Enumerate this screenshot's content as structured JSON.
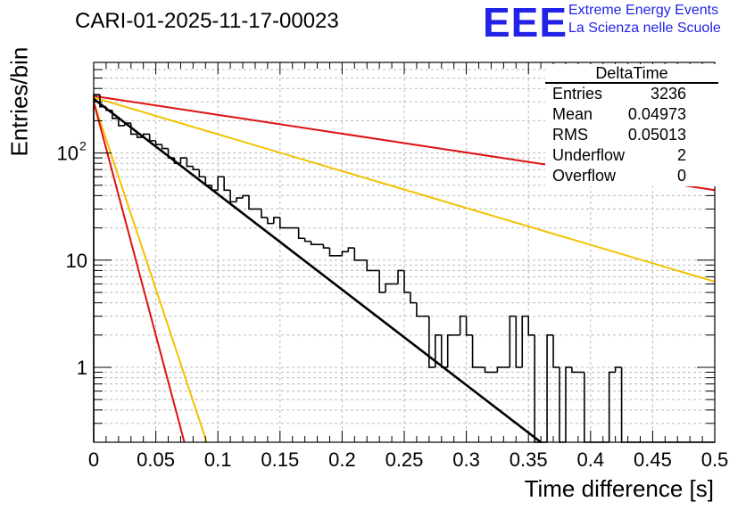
{
  "title": "CARI-01-2025-11-17-00023",
  "logo": {
    "mark": "EEE",
    "line1": "Extreme Energy Events",
    "line2": "La Scienza nelle Scuole",
    "color": "#2323e8"
  },
  "stats_box": {
    "name": "DeltaTime",
    "rows": [
      {
        "label": "Entries",
        "value": "3236"
      },
      {
        "label": "Mean",
        "value": "0.04973"
      },
      {
        "label": "RMS",
        "value": "0.05013"
      },
      {
        "label": "Underflow",
        "value": "2"
      },
      {
        "label": "Overflow",
        "value": "0"
      }
    ]
  },
  "chart_data": {
    "type": "histogram",
    "title": "CARI-01-2025-11-17-00023",
    "xlabel": "Time difference [s]",
    "ylabel": "Entries/bin",
    "xlim": [
      0,
      0.5
    ],
    "ylim": [
      0.2,
      700
    ],
    "yscale": "log",
    "grid": true,
    "x_ticks": [
      "0",
      "0.05",
      "0.1",
      "0.15",
      "0.2",
      "0.25",
      "0.3",
      "0.35",
      "0.4",
      "0.45",
      "0.5"
    ],
    "y_ticks": [
      {
        "value": 1,
        "label": "1"
      },
      {
        "value": 10,
        "label": "10"
      },
      {
        "value": 100,
        "label": "10",
        "exp": "2"
      }
    ],
    "bin_width": 0.005,
    "bin_values": [
      350,
      270,
      250,
      210,
      180,
      190,
      150,
      140,
      150,
      130,
      120,
      110,
      90,
      80,
      90,
      75,
      70,
      60,
      50,
      45,
      60,
      45,
      35,
      38,
      40,
      30,
      30,
      25,
      22,
      25,
      20,
      20,
      20,
      16,
      15,
      14,
      14,
      13,
      11,
      11,
      12,
      13,
      10,
      10,
      8,
      8,
      5,
      6,
      6,
      8,
      5,
      4,
      3,
      3,
      1,
      2,
      1,
      2,
      2,
      3,
      2,
      1,
      1,
      0.9,
      0.9,
      1,
      1,
      3,
      1,
      3,
      2,
      0,
      0,
      2,
      1,
      0,
      1,
      0.9,
      0.9,
      0,
      0,
      0,
      0,
      0.9,
      1,
      0,
      0,
      0,
      0,
      0,
      0,
      0,
      0,
      0,
      0,
      0,
      0,
      0,
      0,
      0
    ],
    "series": [
      {
        "name": "fit",
        "color": "#000000",
        "x": [
          0.0,
          0.36
        ],
        "y": [
          320,
          0.2
        ]
      },
      {
        "name": "red-slow",
        "color": "#dd1111",
        "x": [
          0.0,
          0.5
        ],
        "y": [
          340,
          45
        ]
      },
      {
        "name": "yellow-slow",
        "color": "#f2c200",
        "x": [
          0.0,
          0.5
        ],
        "y": [
          330,
          6.3
        ]
      },
      {
        "name": "red-fast",
        "color": "#dd1111",
        "x": [
          0.0,
          0.073
        ],
        "y": [
          300,
          0.2
        ]
      },
      {
        "name": "yellow-fast",
        "color": "#f2c200",
        "x": [
          0.0,
          0.091
        ],
        "y": [
          300,
          0.2
        ]
      }
    ]
  }
}
